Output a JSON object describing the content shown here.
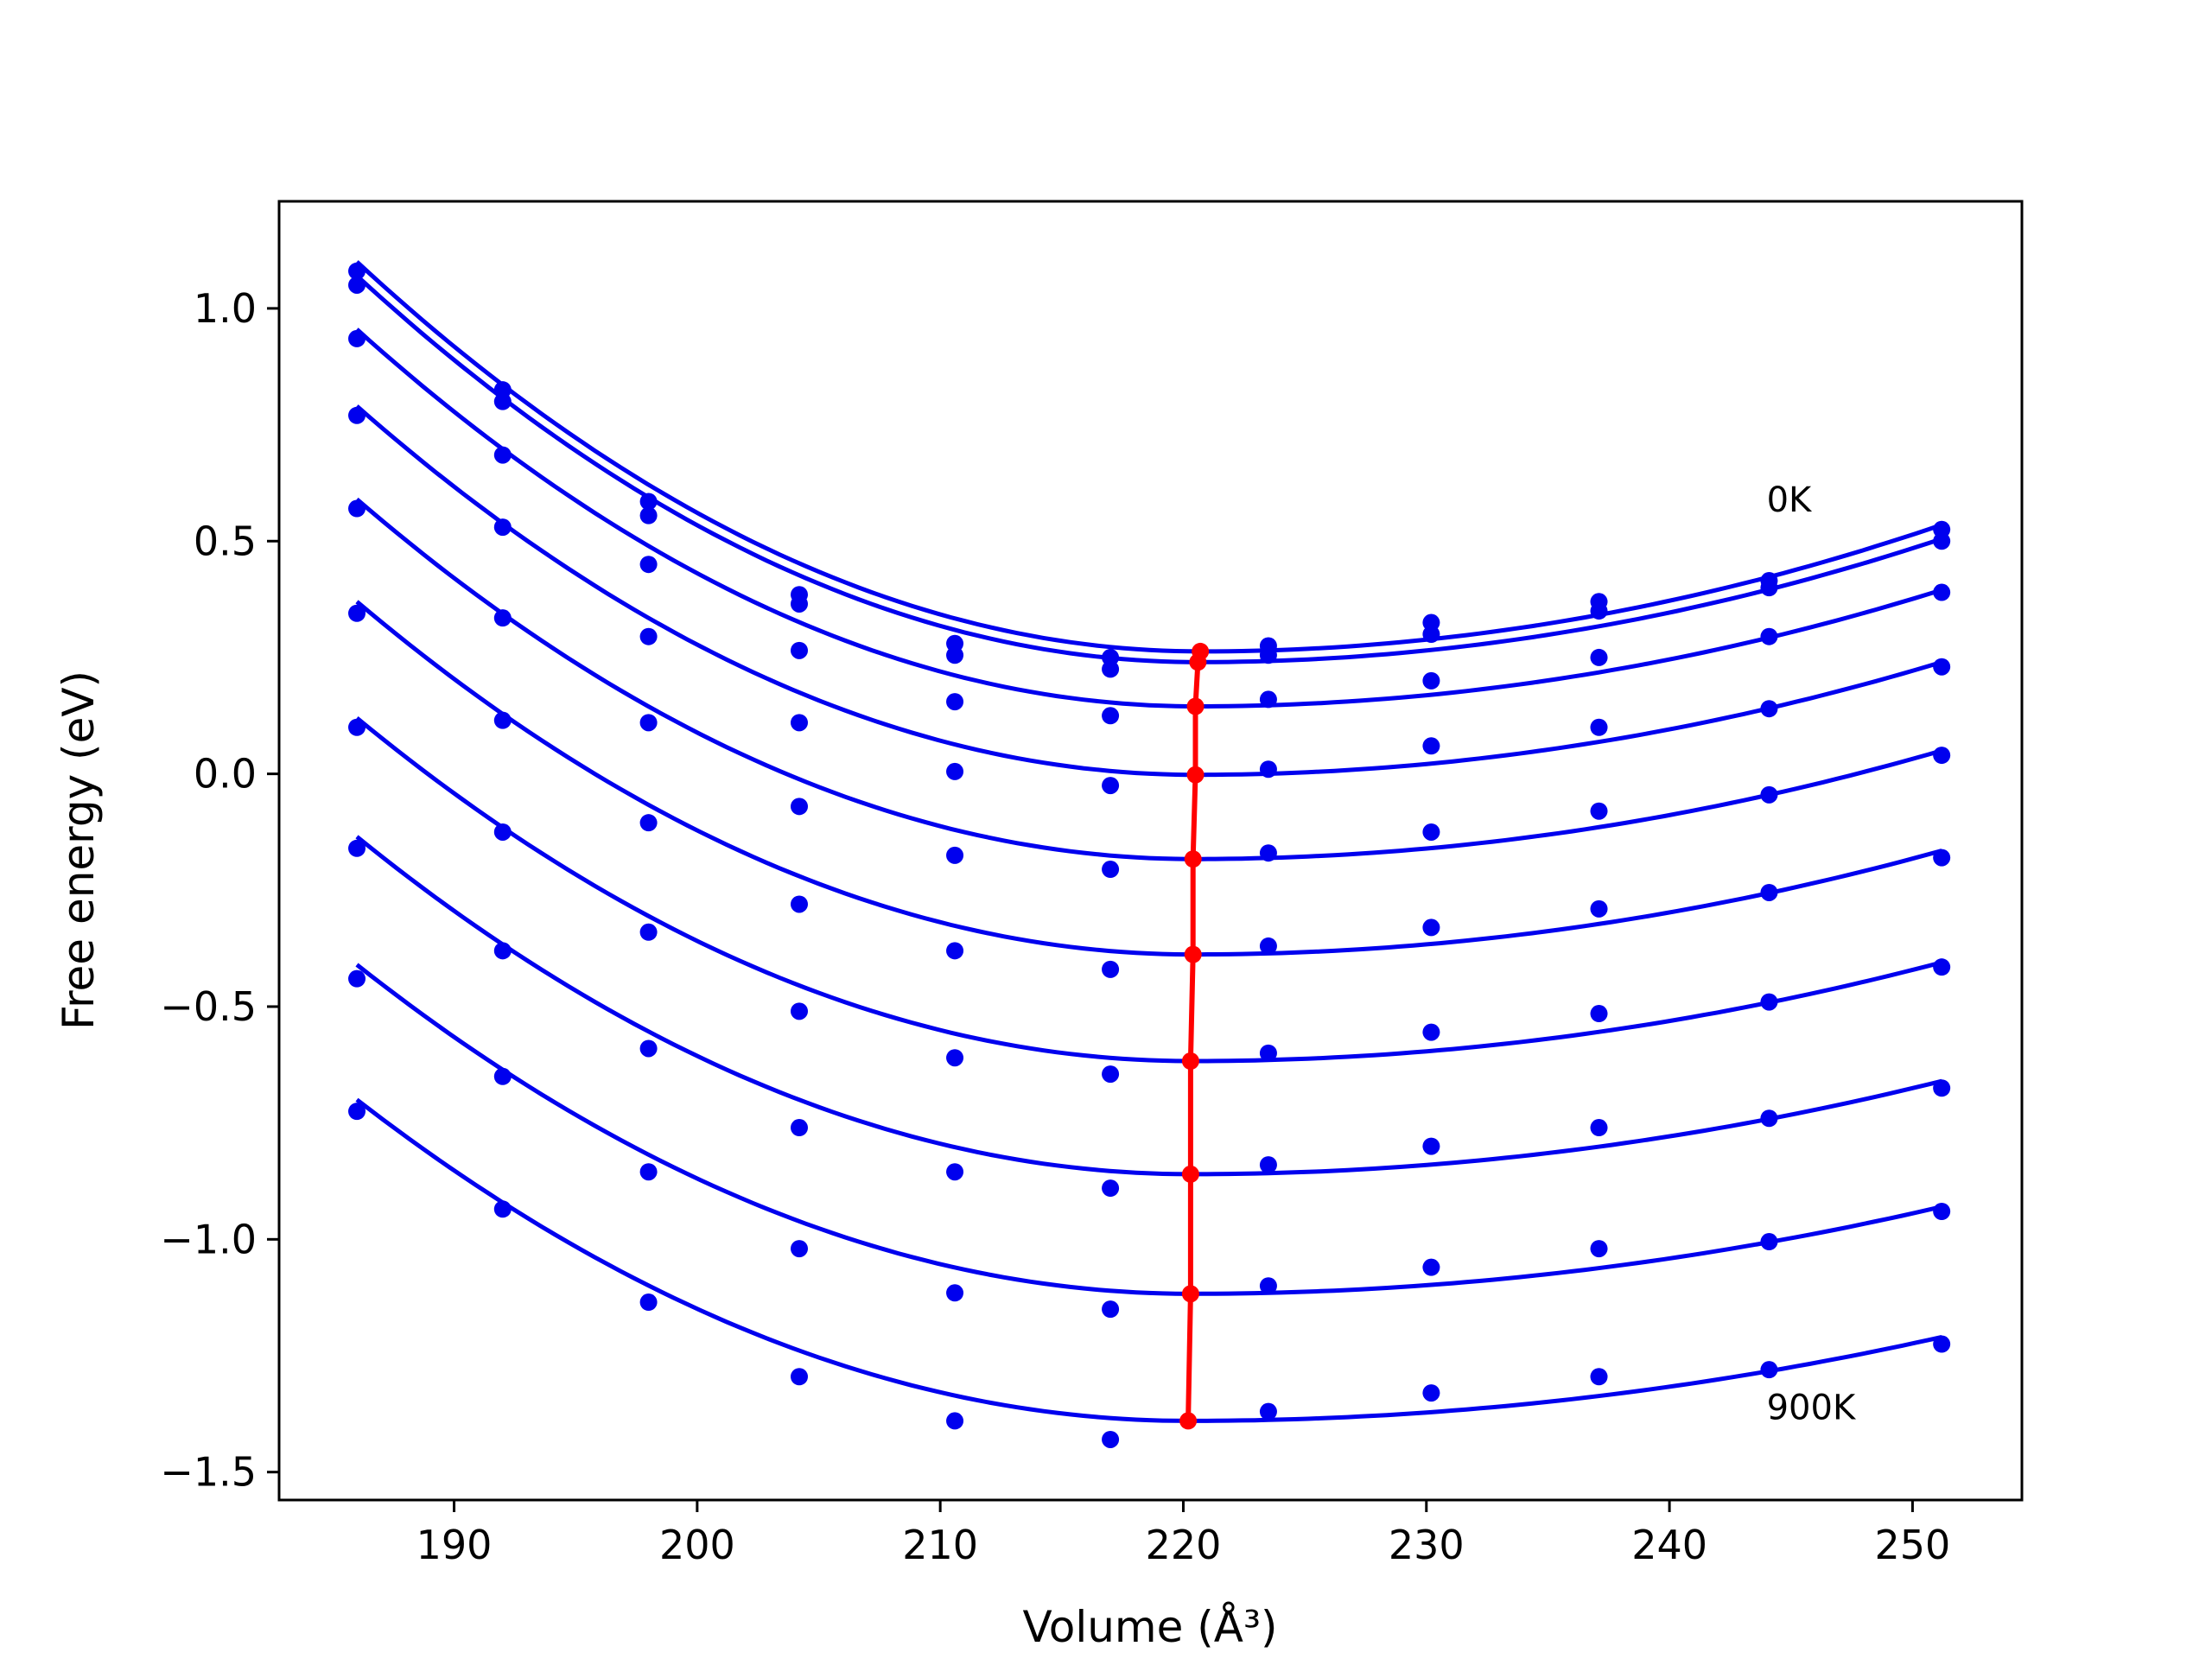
{
  "chart_data": {
    "type": "line",
    "xlabel": "Volume (Å³)",
    "ylabel": "Free energy (eV)",
    "xlim": [
      182.8,
      254.5
    ],
    "ylim": [
      -1.56,
      1.23
    ],
    "xticks": [
      190,
      200,
      210,
      220,
      230,
      240,
      250
    ],
    "xtick_labels": [
      "190",
      "200",
      "210",
      "220",
      "230",
      "240",
      "250"
    ],
    "yticks": [
      1.0,
      0.5,
      0.0,
      -0.5,
      -1.0,
      -1.5
    ],
    "ytick_labels": [
      "1.0",
      "0.5",
      "0.0",
      "−0.5",
      "−1.0",
      "−1.5"
    ],
    "grid": false,
    "colors": {
      "fit": "#0000ee",
      "points": "#0000ee",
      "minimum": "#ff0000",
      "axis": "#000000"
    },
    "annotations": [
      {
        "text": "0K",
        "x": 244.0,
        "y": 0.59
      },
      {
        "text": "900K",
        "x": 244.0,
        "y": -1.36
      }
    ],
    "volumes": [
      186.0,
      192.0,
      198.0,
      204.2,
      210.6,
      217.0,
      223.5,
      230.2,
      237.1,
      244.1,
      251.2
    ],
    "series": [
      {
        "curve_min_x": 220.7,
        "curve_min_y": 0.263,
        "curve_start_y": 1.1,
        "curve_end_y": 0.535,
        "points": [
          1.08,
          0.825,
          0.585,
          0.385,
          0.28,
          0.25,
          0.275,
          0.325,
          0.37,
          0.415,
          0.525
        ]
      },
      {
        "curve_min_x": 220.6,
        "curve_min_y": 0.24,
        "curve_start_y": 1.07,
        "curve_end_y": 0.505,
        "points": [
          1.05,
          0.8,
          0.555,
          0.365,
          0.255,
          0.225,
          0.255,
          0.3,
          0.35,
          0.4,
          0.5
        ]
      },
      {
        "curve_min_x": 220.5,
        "curve_min_y": 0.145,
        "curve_start_y": 0.955,
        "curve_end_y": 0.395,
        "points": [
          0.935,
          0.685,
          0.45,
          0.265,
          0.155,
          0.125,
          0.16,
          0.2,
          0.25,
          0.295,
          0.39
        ]
      },
      {
        "curve_min_x": 220.5,
        "curve_min_y": -0.002,
        "curve_start_y": 0.79,
        "curve_end_y": 0.24,
        "points": [
          0.77,
          0.53,
          0.295,
          0.11,
          0.005,
          -0.025,
          0.01,
          0.06,
          0.1,
          0.14,
          0.23
        ]
      },
      {
        "curve_min_x": 220.4,
        "curve_min_y": -0.183,
        "curve_start_y": 0.59,
        "curve_end_y": 0.05,
        "points": [
          0.57,
          0.335,
          0.11,
          -0.07,
          -0.175,
          -0.205,
          -0.17,
          -0.125,
          -0.08,
          -0.045,
          0.04
        ]
      },
      {
        "curve_min_x": 220.4,
        "curve_min_y": -0.388,
        "curve_start_y": 0.37,
        "curve_end_y": -0.165,
        "points": [
          0.345,
          0.115,
          -0.105,
          -0.28,
          -0.38,
          -0.42,
          -0.37,
          -0.33,
          -0.29,
          -0.255,
          -0.18
        ]
      },
      {
        "curve_min_x": 220.3,
        "curve_min_y": -0.617,
        "curve_start_y": 0.12,
        "curve_end_y": -0.405,
        "points": [
          0.1,
          -0.125,
          -0.34,
          -0.51,
          -0.61,
          -0.645,
          -0.6,
          -0.555,
          -0.515,
          -0.49,
          -0.415
        ]
      },
      {
        "curve_min_x": 220.3,
        "curve_min_y": -0.86,
        "curve_start_y": -0.135,
        "curve_end_y": -0.66,
        "points": [
          -0.16,
          -0.38,
          -0.59,
          -0.76,
          -0.855,
          -0.89,
          -0.84,
          -0.8,
          -0.76,
          -0.74,
          -0.675
        ]
      },
      {
        "curve_min_x": 220.3,
        "curve_min_y": -1.117,
        "curve_start_y": -0.41,
        "curve_end_y": -0.93,
        "points": [
          -0.44,
          -0.65,
          -0.855,
          -1.02,
          -1.115,
          -1.15,
          -1.1,
          -1.06,
          -1.02,
          -1.005,
          -0.94
        ]
      },
      {
        "curve_min_x": 220.2,
        "curve_min_y": -1.39,
        "curve_start_y": -0.7,
        "curve_end_y": -1.21,
        "points": [
          -0.725,
          -0.935,
          -1.135,
          -1.295,
          -1.39,
          -1.43,
          -1.37,
          -1.33,
          -1.295,
          -1.28,
          -1.225
        ]
      }
    ],
    "minimum_line": {
      "x": [
        220.7,
        220.6,
        220.5,
        220.5,
        220.4,
        220.4,
        220.3,
        220.3,
        220.3,
        220.2
      ],
      "y": [
        0.263,
        0.24,
        0.145,
        -0.002,
        -0.183,
        -0.388,
        -0.617,
        -0.86,
        -1.117,
        -1.39
      ]
    }
  }
}
